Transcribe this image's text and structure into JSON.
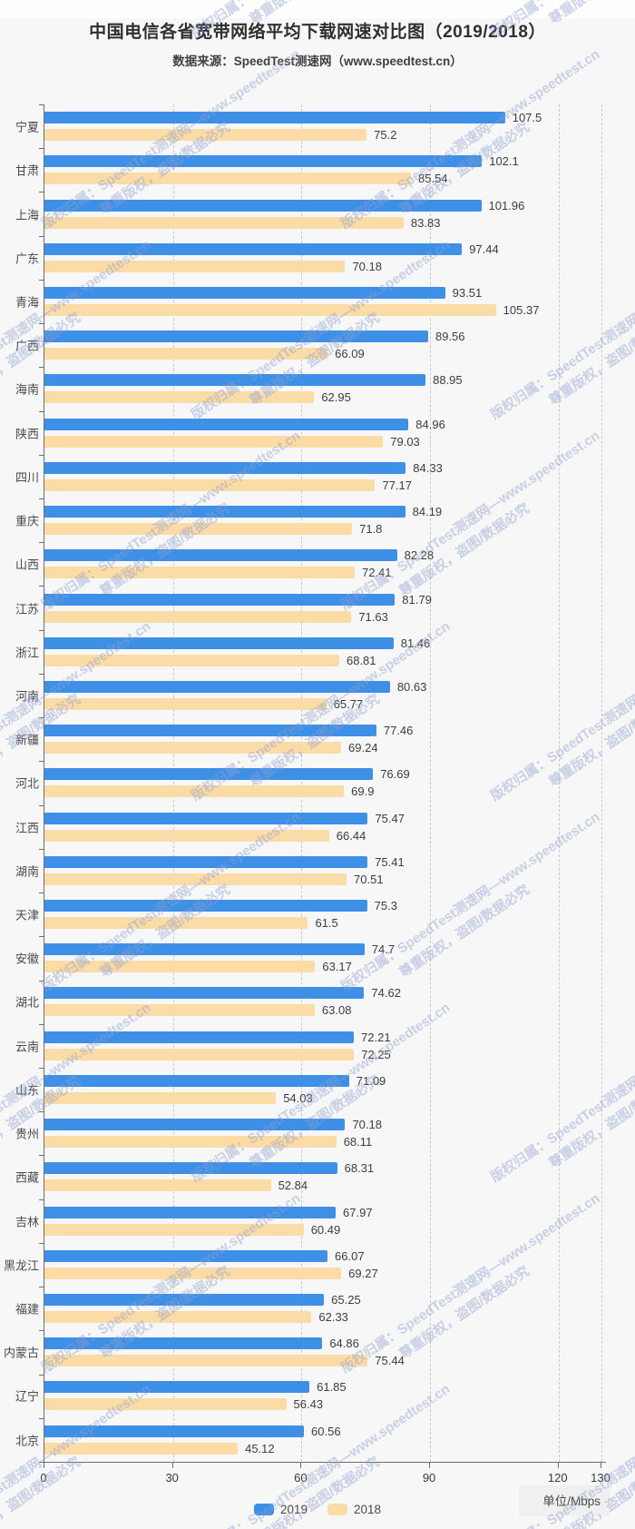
{
  "header": {
    "title": "中国电信各省宽带网络平均下载网速对比图（2019/2018）",
    "subtitle": "数据来源：SpeedTest测速网（www.speedtest.cn）"
  },
  "chart_data": {
    "type": "bar",
    "orientation": "horizontal",
    "title": "中国电信各省宽带网络平均下载网速对比图（2019/2018）",
    "subtitle": "数据来源：SpeedTest测速网（www.speedtest.cn）",
    "xlabel": "单位/Mbps",
    "xlim": [
      0,
      130
    ],
    "x_ticks": [
      0,
      30,
      60,
      90,
      120,
      130
    ],
    "grid": "dashed-vertical",
    "legend_position": "bottom",
    "categories": [
      "宁夏",
      "甘肃",
      "上海",
      "广东",
      "青海",
      "广西",
      "海南",
      "陕西",
      "四川",
      "重庆",
      "山西",
      "江苏",
      "浙江",
      "河南",
      "新疆",
      "河北",
      "江西",
      "湖南",
      "天津",
      "安徽",
      "湖北",
      "云南",
      "山东",
      "贵州",
      "西藏",
      "吉林",
      "黑龙江",
      "福建",
      "内蒙古",
      "辽宁",
      "北京"
    ],
    "series": [
      {
        "name": "2019",
        "color": "#3E8FE6",
        "values": [
          107.5,
          102.1,
          101.96,
          97.44,
          93.51,
          89.56,
          88.95,
          84.96,
          84.33,
          84.19,
          82.28,
          81.79,
          81.46,
          80.63,
          77.46,
          76.69,
          75.47,
          75.41,
          75.3,
          74.7,
          74.62,
          72.21,
          71.09,
          70.18,
          68.31,
          67.97,
          66.07,
          65.25,
          64.86,
          61.85,
          60.56
        ]
      },
      {
        "name": "2018",
        "color": "#FBDCA6",
        "values": [
          75.2,
          85.54,
          83.83,
          70.18,
          105.37,
          66.09,
          62.95,
          79.03,
          77.17,
          71.8,
          72.41,
          71.63,
          68.81,
          65.77,
          69.24,
          69.9,
          66.44,
          70.51,
          61.5,
          63.17,
          63.08,
          72.25,
          54.03,
          68.11,
          52.84,
          60.49,
          69.27,
          62.33,
          75.44,
          56.43,
          45.12
        ]
      }
    ]
  },
  "legend": {
    "items": [
      "2019",
      "2018"
    ]
  },
  "axis": {
    "unit_label": "单位/Mbps"
  },
  "watermark": {
    "line1": "版权归属：SpeedTest测速网—www.speedtest.cn",
    "line2": "尊重版权，盗图/数据必究"
  }
}
